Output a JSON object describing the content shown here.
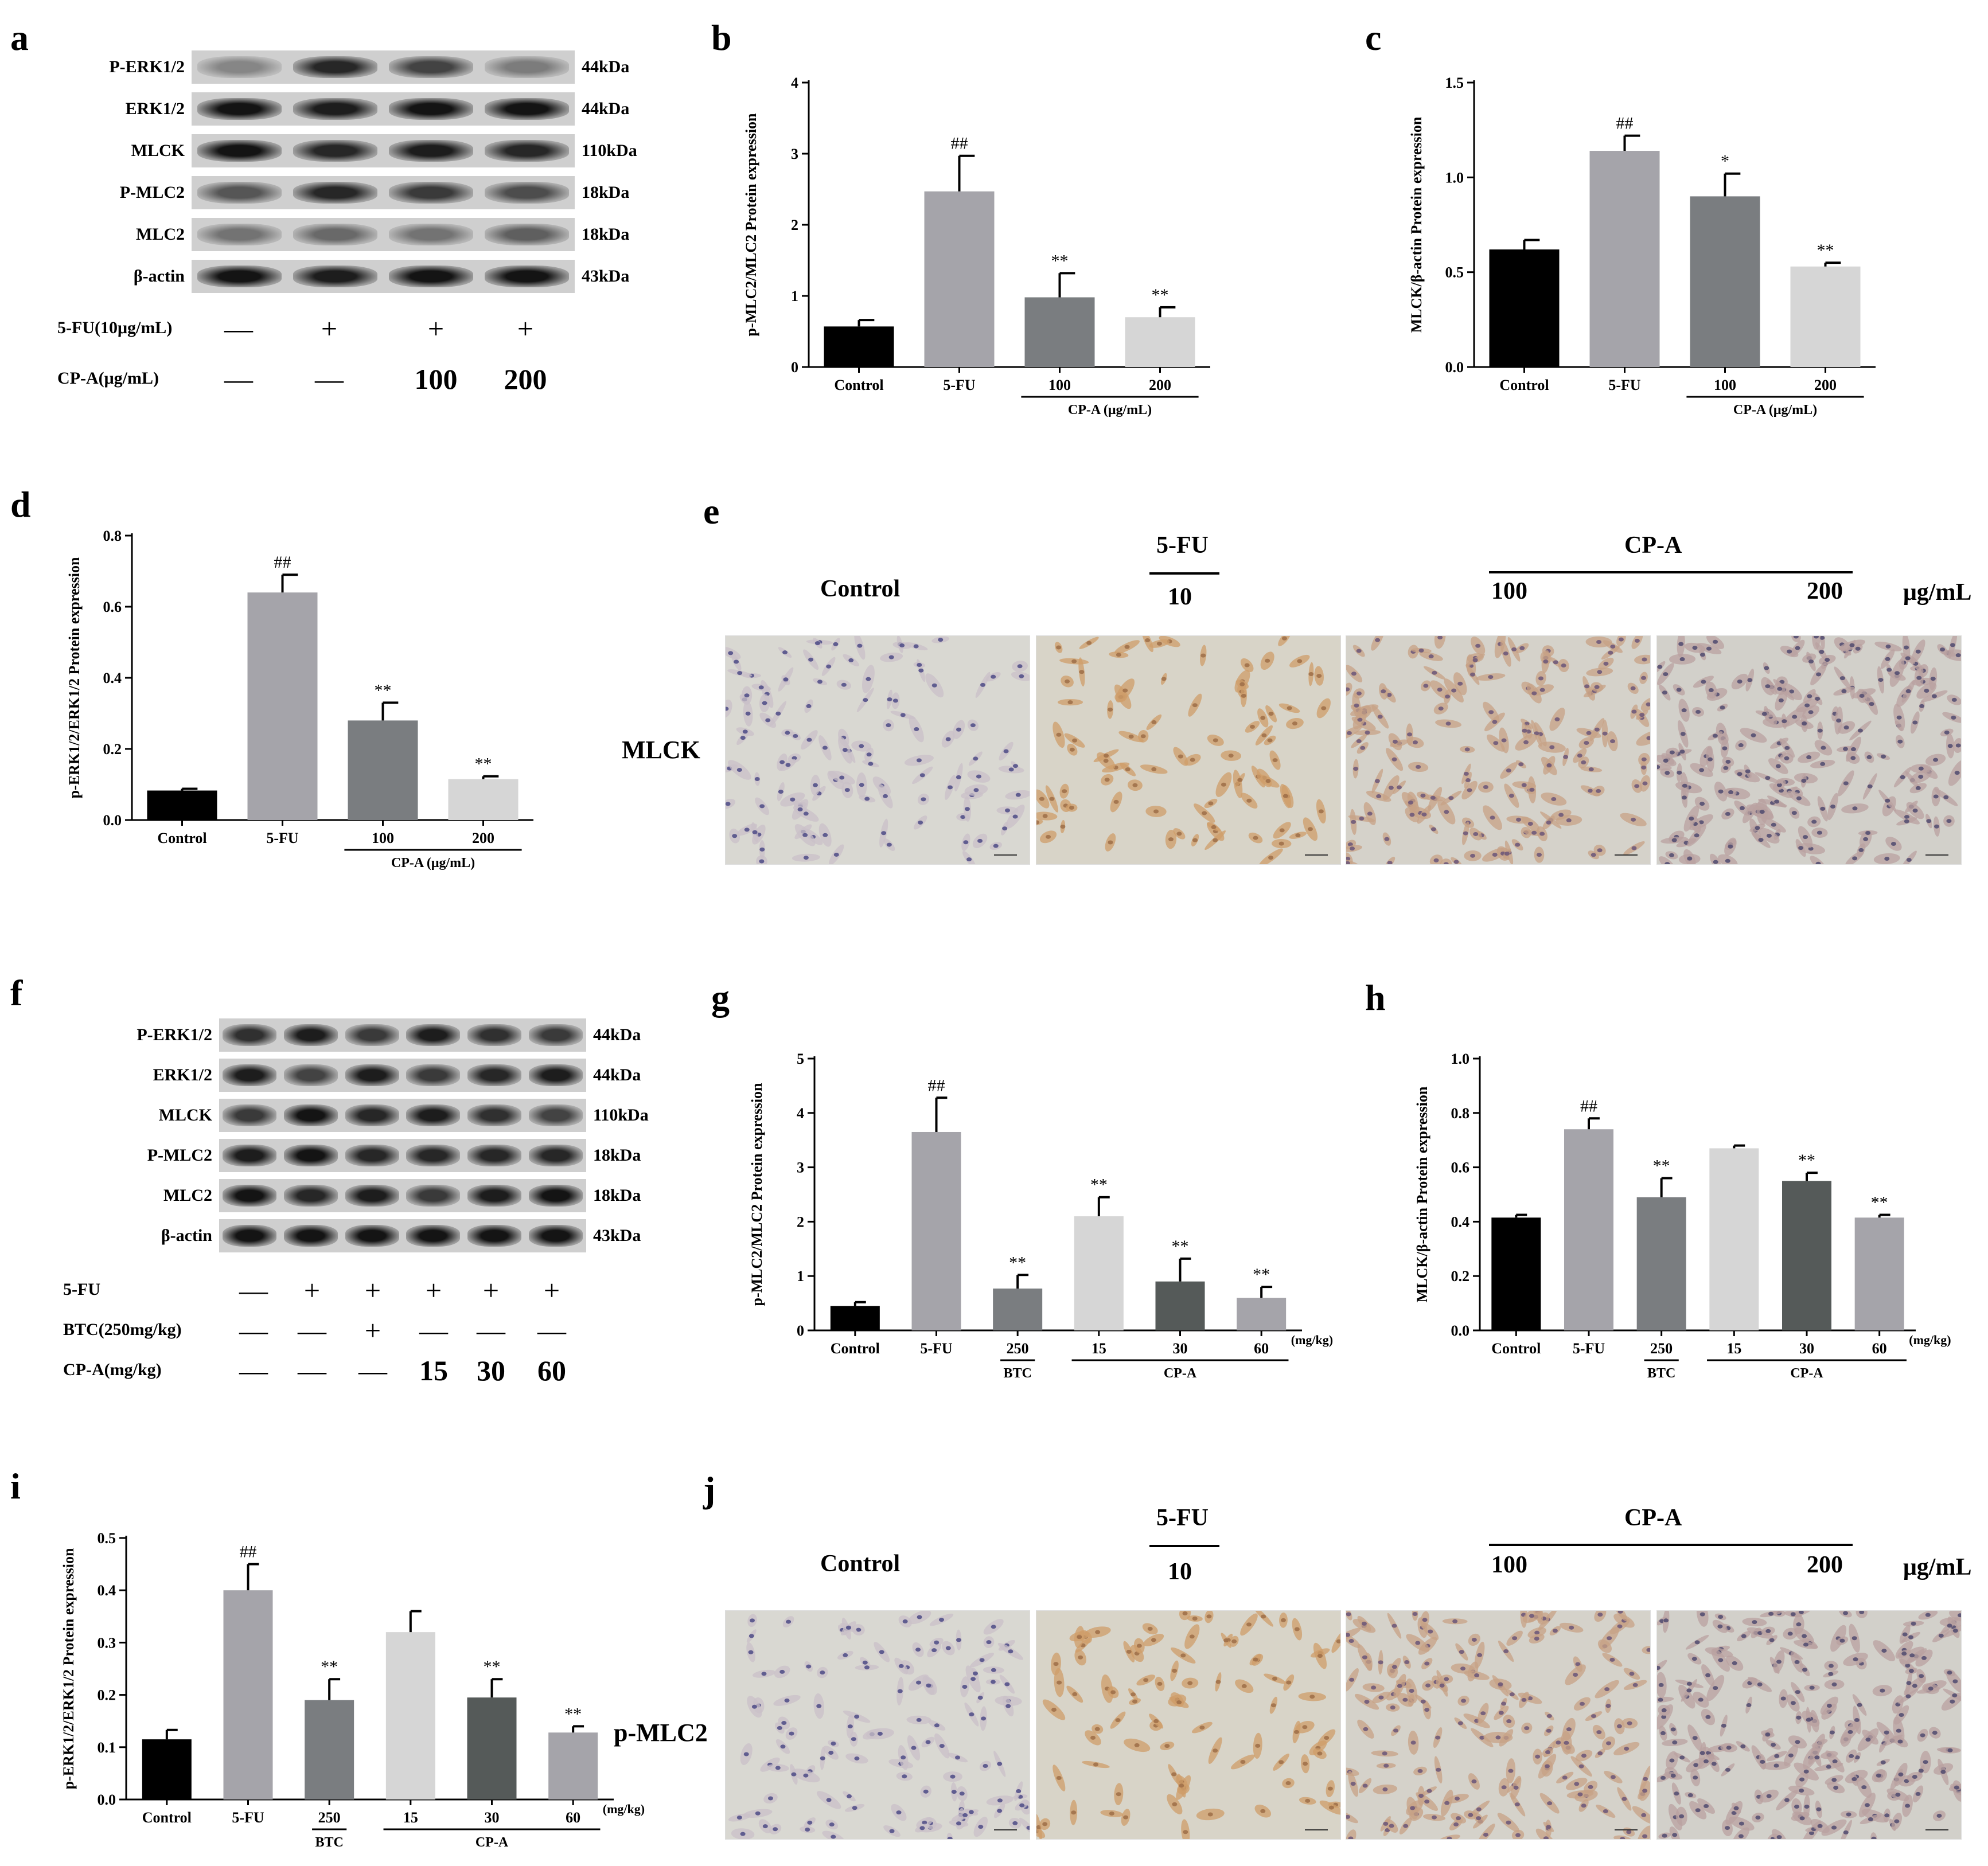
{
  "panels": {
    "a": "a",
    "b": "b",
    "c": "c",
    "d": "d",
    "e": "e",
    "f": "f",
    "g": "g",
    "h": "h",
    "i": "i",
    "j": "j"
  },
  "blot_a": {
    "rows": [
      {
        "name": "P-ERK1/2",
        "kda": "44kDa"
      },
      {
        "name": "ERK1/2",
        "kda": "44kDa"
      },
      {
        "name": "MLCK",
        "kda": "110kDa"
      },
      {
        "name": "P-MLC2",
        "kda": "18kDa"
      },
      {
        "name": "MLC2",
        "kda": "18kDa"
      },
      {
        "name": "β-actin",
        "kda": "43kDa"
      }
    ],
    "treatments": [
      {
        "label": "5-FU(10μg/mL)",
        "values": [
          "—",
          "+",
          "+",
          "+"
        ]
      },
      {
        "label": "CP-A(μg/mL)",
        "values": [
          "—",
          "—",
          "100",
          "200"
        ]
      }
    ]
  },
  "blot_f": {
    "rows": [
      {
        "name": "P-ERK1/2",
        "kda": "44kDa"
      },
      {
        "name": "ERK1/2",
        "kda": "44kDa"
      },
      {
        "name": "MLCK",
        "kda": "110kDa"
      },
      {
        "name": "P-MLC2",
        "kda": "18kDa"
      },
      {
        "name": "MLC2",
        "kda": "18kDa"
      },
      {
        "name": "β-actin",
        "kda": "43kDa"
      }
    ],
    "treatments": [
      {
        "label": "5-FU",
        "values": [
          "—",
          "+",
          "+",
          "+",
          "+",
          "+"
        ]
      },
      {
        "label": "BTC(250mg/kg)",
        "values": [
          "—",
          "—",
          "+",
          "—",
          "—",
          "—"
        ]
      },
      {
        "label": "CP-A(mg/kg)",
        "values": [
          "—",
          "—",
          "—",
          "15",
          "30",
          "60"
        ]
      }
    ]
  },
  "micro_e": {
    "control": "Control",
    "fu_label": "5-FU",
    "fu_dose": "10",
    "cpa_label": "CP-A",
    "cpa_dose1": "100",
    "cpa_dose2": "200",
    "unit": "μg/mL",
    "row_label": "MLCK"
  },
  "micro_j": {
    "control": "Control",
    "fu_label": "5-FU",
    "fu_dose": "10",
    "cpa_label": "CP-A",
    "cpa_dose1": "100",
    "cpa_dose2": "200",
    "unit": "μg/mL",
    "row_label": "p-MLC2"
  },
  "chart_data": [
    {
      "id": "b",
      "type": "bar",
      "ylabel": "p-MLC2/MLC2 Protein expression",
      "categories": [
        "Control",
        "5-FU",
        "100",
        "200"
      ],
      "values": [
        0.57,
        2.47,
        0.98,
        0.7
      ],
      "errors": [
        0.09,
        0.5,
        0.34,
        0.14
      ],
      "sig": [
        "",
        "##",
        "**",
        "**"
      ],
      "colors": [
        "#000000",
        "#a5a4aa",
        "#7a7d80",
        "#d6d6d6"
      ],
      "ylim": [
        0,
        4
      ],
      "yticks": [
        "0",
        "1",
        "2",
        "3",
        "4"
      ],
      "group_label": "CP-A (μg/mL)",
      "group_cats": [
        2,
        3
      ]
    },
    {
      "id": "c",
      "type": "bar",
      "ylabel": "MLCK/β-actin Protein expression",
      "categories": [
        "Control",
        "5-FU",
        "100",
        "200"
      ],
      "values": [
        0.62,
        1.14,
        0.9,
        0.53
      ],
      "errors": [
        0.05,
        0.08,
        0.12,
        0.02
      ],
      "sig": [
        "",
        "##",
        "*",
        "**"
      ],
      "colors": [
        "#000000",
        "#a5a4aa",
        "#7a7d80",
        "#d6d6d6"
      ],
      "ylim": [
        0,
        1.5
      ],
      "yticks": [
        "0.0",
        "0.5",
        "1.0",
        "1.5"
      ],
      "group_label": "CP-A (μg/mL)",
      "group_cats": [
        2,
        3
      ]
    },
    {
      "id": "d",
      "type": "bar",
      "ylabel": "p-ERK1/2/ERK1/2 Protein expression",
      "categories": [
        "Control",
        "5-FU",
        "100",
        "200"
      ],
      "values": [
        0.083,
        0.64,
        0.28,
        0.115
      ],
      "errors": [
        0.005,
        0.05,
        0.05,
        0.008
      ],
      "sig": [
        "",
        "##",
        "**",
        "**"
      ],
      "colors": [
        "#000000",
        "#a5a4aa",
        "#7a7d80",
        "#d6d6d6"
      ],
      "ylim": [
        0,
        0.8
      ],
      "yticks": [
        "0.0",
        "0.2",
        "0.4",
        "0.6",
        "0.8"
      ],
      "group_label": "CP-A (μg/mL)",
      "group_cats": [
        2,
        3
      ]
    },
    {
      "id": "g",
      "type": "bar",
      "ylabel": "p-MLC2/MLC2 Protein expression",
      "categories": [
        "Control",
        "5-FU",
        "250",
        "15",
        "30",
        "60"
      ],
      "values": [
        0.45,
        3.65,
        0.77,
        2.1,
        0.9,
        0.6
      ],
      "errors": [
        0.07,
        0.63,
        0.25,
        0.35,
        0.42,
        0.2
      ],
      "sig": [
        "",
        "##",
        "**",
        "**",
        "**",
        "**"
      ],
      "colors": [
        "#000000",
        "#a5a4aa",
        "#7a7d80",
        "#d6d6d6",
        "#555a59",
        "#a5a4aa"
      ],
      "ylim": [
        0,
        5
      ],
      "yticks": [
        "0",
        "1",
        "2",
        "3",
        "4",
        "5"
      ],
      "unit_note": "(mg/kg)",
      "btc_label": "BTC",
      "btc_cat": 2,
      "group_label": "CP-A",
      "group_cats": [
        3,
        5
      ]
    },
    {
      "id": "h",
      "type": "bar",
      "ylabel": "MLCK/β-actin Protein expression",
      "categories": [
        "Control",
        "5-FU",
        "250",
        "15",
        "30",
        "60"
      ],
      "values": [
        0.415,
        0.74,
        0.49,
        0.67,
        0.55,
        0.415
      ],
      "errors": [
        0.01,
        0.04,
        0.07,
        0.01,
        0.03,
        0.01
      ],
      "sig": [
        "",
        "##",
        "**",
        "",
        "**",
        "**"
      ],
      "colors": [
        "#000000",
        "#a5a4aa",
        "#7a7d80",
        "#d6d6d6",
        "#555a59",
        "#a5a4aa"
      ],
      "ylim": [
        0,
        1.0
      ],
      "yticks": [
        "0.0",
        "0.2",
        "0.4",
        "0.6",
        "0.8",
        "1.0"
      ],
      "unit_note": "(mg/kg)",
      "btc_label": "BTC",
      "btc_cat": 2,
      "group_label": "CP-A",
      "group_cats": [
        3,
        5
      ]
    },
    {
      "id": "i",
      "type": "bar",
      "ylabel": "p-ERK1/2/ERK1/2 Protein expression",
      "categories": [
        "Control",
        "5-FU",
        "250",
        "15",
        "30",
        "60"
      ],
      "values": [
        0.115,
        0.4,
        0.19,
        0.32,
        0.195,
        0.128
      ],
      "errors": [
        0.018,
        0.05,
        0.04,
        0.04,
        0.035,
        0.012
      ],
      "sig": [
        "",
        "##",
        "**",
        "",
        "**",
        "**"
      ],
      "colors": [
        "#000000",
        "#a5a4aa",
        "#7a7d80",
        "#d6d6d6",
        "#555a59",
        "#a5a4aa"
      ],
      "ylim": [
        0,
        0.5
      ],
      "yticks": [
        "0.0",
        "0.1",
        "0.2",
        "0.3",
        "0.4",
        "0.5"
      ],
      "unit_note": "(mg/kg)",
      "btc_label": "BTC",
      "btc_cat": 2,
      "group_label": "CP-A",
      "group_cats": [
        3,
        5
      ]
    }
  ]
}
